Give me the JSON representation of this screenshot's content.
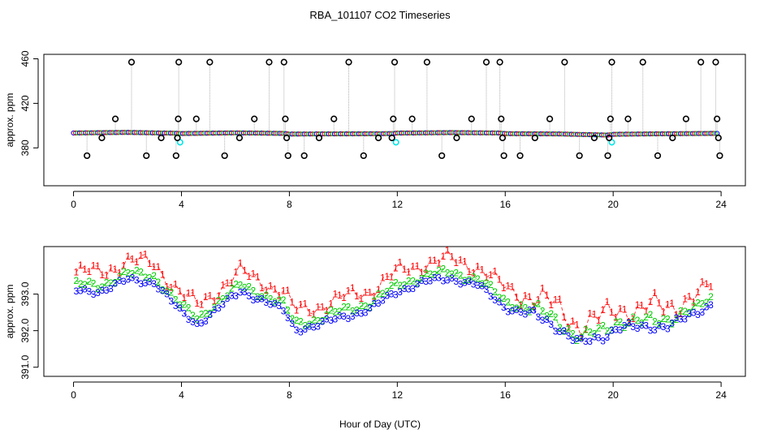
{
  "chart_data": [
    {
      "type": "scatter",
      "title": "RBA_101107  CO2 Timeseries",
      "xlabel": "",
      "ylabel": "approx. ppm",
      "xlim": [
        -1.1,
        24.9
      ],
      "ylim": [
        346,
        464
      ],
      "xticks": [
        0,
        4,
        8,
        12,
        16,
        20,
        24
      ],
      "xtick_labels": [
        "0",
        "4",
        "8",
        "12",
        "16",
        "20",
        "24"
      ],
      "yticks": [
        380,
        420,
        460
      ],
      "ytick_labels": [
        "380",
        "420",
        "460"
      ],
      "grid": false,
      "colors": {
        "series1": "#ff0000",
        "series2": "#00cc00",
        "series3": "#0000ff",
        "reference": "#00e5e5",
        "spike": "#000000",
        "connector": "#b0b0b0"
      },
      "baseline": [
        {
          "x": 0.0,
          "y": 393.4
        },
        {
          "x": 2.0,
          "y": 393.9
        },
        {
          "x": 3.7,
          "y": 393.2
        },
        {
          "x": 4.0,
          "y": 392.9
        },
        {
          "x": 6.0,
          "y": 393.5
        },
        {
          "x": 7.8,
          "y": 393.0
        },
        {
          "x": 8.0,
          "y": 392.4
        },
        {
          "x": 10.0,
          "y": 392.6
        },
        {
          "x": 11.8,
          "y": 392.8
        },
        {
          "x": 12.0,
          "y": 393.3
        },
        {
          "x": 14.0,
          "y": 393.7
        },
        {
          "x": 15.8,
          "y": 393.4
        },
        {
          "x": 16.0,
          "y": 392.8
        },
        {
          "x": 18.0,
          "y": 392.5
        },
        {
          "x": 19.8,
          "y": 391.5
        },
        {
          "x": 20.0,
          "y": 392.2
        },
        {
          "x": 22.0,
          "y": 392.7
        },
        {
          "x": 23.8,
          "y": 393.0
        }
      ],
      "reference_points": [
        {
          "x": 3.95,
          "y": 385
        },
        {
          "x": 11.95,
          "y": 385
        },
        {
          "x": 19.95,
          "y": 385
        }
      ],
      "spikes": [
        {
          "x": 0.5,
          "y": 373
        },
        {
          "x": 1.05,
          "y": 389
        },
        {
          "x": 1.55,
          "y": 406
        },
        {
          "x": 2.15,
          "y": 457
        },
        {
          "x": 2.7,
          "y": 373
        },
        {
          "x": 3.25,
          "y": 389
        },
        {
          "x": 3.8,
          "y": 373
        },
        {
          "x": 3.85,
          "y": 389
        },
        {
          "x": 3.88,
          "y": 406
        },
        {
          "x": 3.9,
          "y": 457
        },
        {
          "x": 4.55,
          "y": 406
        },
        {
          "x": 5.05,
          "y": 457
        },
        {
          "x": 5.6,
          "y": 373
        },
        {
          "x": 6.15,
          "y": 389
        },
        {
          "x": 6.7,
          "y": 406
        },
        {
          "x": 7.25,
          "y": 457
        },
        {
          "x": 7.8,
          "y": 457
        },
        {
          "x": 7.85,
          "y": 406
        },
        {
          "x": 7.9,
          "y": 389
        },
        {
          "x": 7.95,
          "y": 373
        },
        {
          "x": 8.55,
          "y": 373
        },
        {
          "x": 9.1,
          "y": 389
        },
        {
          "x": 9.65,
          "y": 406
        },
        {
          "x": 10.2,
          "y": 457
        },
        {
          "x": 10.75,
          "y": 373
        },
        {
          "x": 11.3,
          "y": 389
        },
        {
          "x": 11.85,
          "y": 406
        },
        {
          "x": 11.9,
          "y": 457
        },
        {
          "x": 11.8,
          "y": 389
        },
        {
          "x": 12.55,
          "y": 406
        },
        {
          "x": 13.1,
          "y": 457
        },
        {
          "x": 13.65,
          "y": 373
        },
        {
          "x": 14.2,
          "y": 389
        },
        {
          "x": 14.75,
          "y": 406
        },
        {
          "x": 15.3,
          "y": 457
        },
        {
          "x": 15.8,
          "y": 457
        },
        {
          "x": 15.85,
          "y": 406
        },
        {
          "x": 15.9,
          "y": 389
        },
        {
          "x": 15.95,
          "y": 373
        },
        {
          "x": 16.55,
          "y": 373
        },
        {
          "x": 17.1,
          "y": 389
        },
        {
          "x": 17.65,
          "y": 406
        },
        {
          "x": 18.2,
          "y": 457
        },
        {
          "x": 18.75,
          "y": 373
        },
        {
          "x": 19.3,
          "y": 389
        },
        {
          "x": 19.8,
          "y": 373
        },
        {
          "x": 19.85,
          "y": 389
        },
        {
          "x": 19.9,
          "y": 406
        },
        {
          "x": 19.95,
          "y": 457
        },
        {
          "x": 20.55,
          "y": 406
        },
        {
          "x": 21.1,
          "y": 457
        },
        {
          "x": 21.65,
          "y": 373
        },
        {
          "x": 22.2,
          "y": 389
        },
        {
          "x": 22.7,
          "y": 406
        },
        {
          "x": 23.25,
          "y": 457
        },
        {
          "x": 23.8,
          "y": 457
        },
        {
          "x": 23.85,
          "y": 406
        },
        {
          "x": 23.9,
          "y": 389
        },
        {
          "x": 23.95,
          "y": 373
        }
      ]
    },
    {
      "type": "line",
      "title": "",
      "xlabel": "Hour of Day (UTC)",
      "ylabel": "approx. ppm",
      "xlim": [
        -1.1,
        24.9
      ],
      "ylim": [
        390.75,
        394.3
      ],
      "xticks": [
        0,
        4,
        8,
        12,
        16,
        20,
        24
      ],
      "xtick_labels": [
        "0",
        "4",
        "8",
        "12",
        "16",
        "20",
        "24"
      ],
      "yticks": [
        391.0,
        392.0,
        393.0
      ],
      "ytick_labels": [
        "391.0",
        "392.0",
        "393.0"
      ],
      "grid": false,
      "series": [
        {
          "name": "1",
          "label": "1",
          "color": "#ff0000",
          "offset": 0.4,
          "jitter": 0.26
        },
        {
          "name": "2",
          "label": "2",
          "color": "#00cc00",
          "offset": 0.05,
          "jitter": 0.14
        },
        {
          "name": "3",
          "label": "3",
          "color": "#0000ff",
          "offset": -0.12,
          "jitter": 0.1
        }
      ],
      "trend": [
        {
          "x": 0.1,
          "y": 393.2
        },
        {
          "x": 1.0,
          "y": 393.2
        },
        {
          "x": 2.0,
          "y": 393.5
        },
        {
          "x": 3.0,
          "y": 393.45
        },
        {
          "x": 3.4,
          "y": 393.1
        },
        {
          "x": 4.0,
          "y": 392.6
        },
        {
          "x": 4.6,
          "y": 392.3
        },
        {
          "x": 5.5,
          "y": 392.8
        },
        {
          "x": 6.2,
          "y": 393.2
        },
        {
          "x": 7.0,
          "y": 392.95
        },
        {
          "x": 7.8,
          "y": 392.65
        },
        {
          "x": 8.2,
          "y": 392.15
        },
        {
          "x": 9.0,
          "y": 392.25
        },
        {
          "x": 10.0,
          "y": 392.5
        },
        {
          "x": 11.0,
          "y": 392.7
        },
        {
          "x": 12.0,
          "y": 393.2
        },
        {
          "x": 13.0,
          "y": 393.45
        },
        {
          "x": 14.0,
          "y": 393.55
        },
        {
          "x": 15.0,
          "y": 393.35
        },
        {
          "x": 16.0,
          "y": 392.75
        },
        {
          "x": 17.0,
          "y": 392.55
        },
        {
          "x": 18.0,
          "y": 392.2
        },
        {
          "x": 18.8,
          "y": 391.75
        },
        {
          "x": 19.5,
          "y": 391.9
        },
        {
          "x": 20.2,
          "y": 392.25
        },
        {
          "x": 21.0,
          "y": 392.15
        },
        {
          "x": 22.0,
          "y": 392.3
        },
        {
          "x": 23.0,
          "y": 392.5
        },
        {
          "x": 23.7,
          "y": 392.9
        }
      ],
      "sample_step_hours": 0.16
    }
  ]
}
